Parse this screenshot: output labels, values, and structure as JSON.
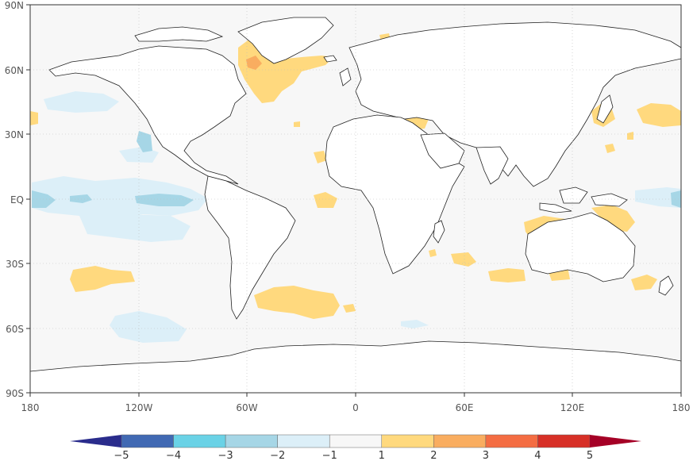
{
  "map": {
    "x_ticks": [
      "180",
      "120W",
      "60W",
      "0",
      "60E",
      "120E",
      "180"
    ],
    "y_ticks": [
      "90N",
      "60N",
      "30N",
      "EQ",
      "30S",
      "60S",
      "90S"
    ],
    "colors": {
      "ocean": "#f7f7f7",
      "land": "#ffffff",
      "coast": "#222222",
      "grid": "#bbbbbb"
    }
  },
  "colorbar": {
    "labels": [
      "−5",
      "−4",
      "−3",
      "−2",
      "−1",
      "1",
      "2",
      "3",
      "4",
      "5"
    ],
    "colors": [
      "#2a2c8c",
      "#4169b3",
      "#6ad2e6",
      "#a6d6e6",
      "#dceff8",
      "#f7f7f7",
      "#ffd97e",
      "#f9ad60",
      "#f46d43",
      "#d73027",
      "#a50026"
    ]
  }
}
